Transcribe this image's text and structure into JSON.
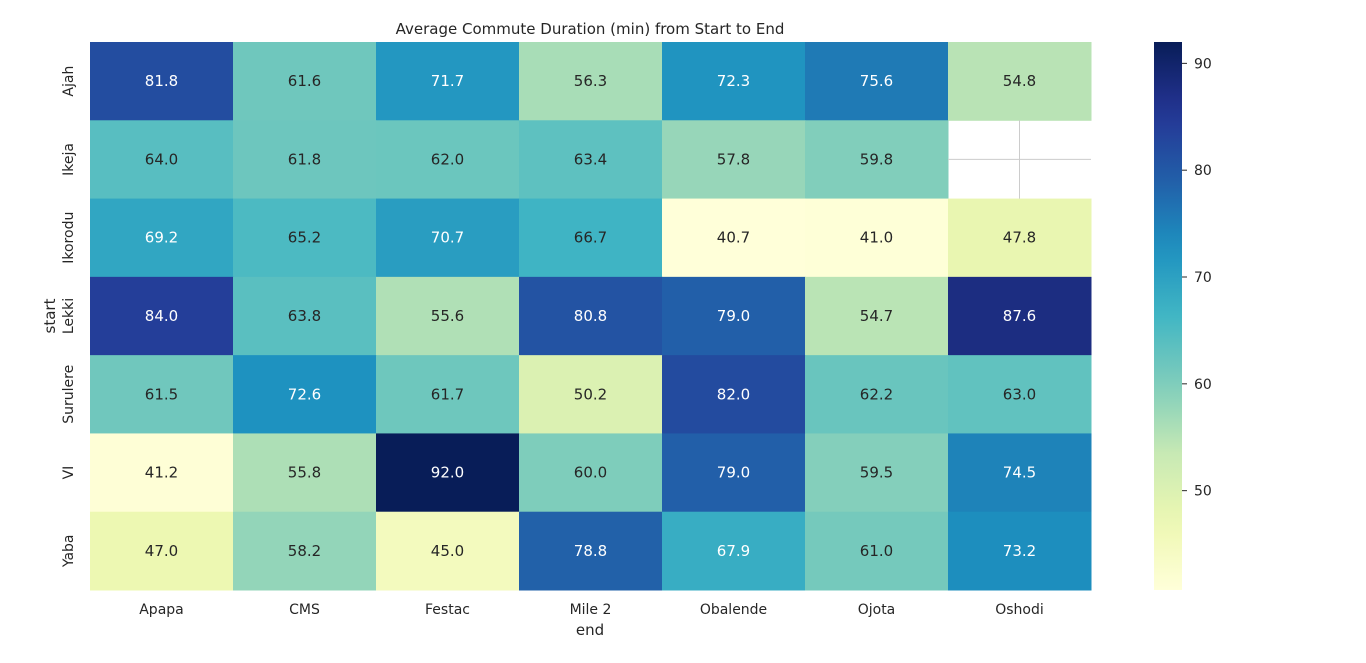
{
  "chart_data": {
    "type": "heatmap",
    "title": "Average Commute Duration (min) from Start to End",
    "xlabel": "end",
    "ylabel": "start",
    "x_categories": [
      "Apapa",
      "CMS",
      "Festac",
      "Mile 2",
      "Obalende",
      "Ojota",
      "Oshodi"
    ],
    "y_categories": [
      "Ajah",
      "Ikeja",
      "Ikorodu",
      "Lekki",
      "Surulere",
      "VI",
      "Yaba"
    ],
    "values": [
      [
        81.8,
        61.6,
        71.7,
        56.3,
        72.3,
        75.6,
        54.8
      ],
      [
        64.0,
        61.8,
        62.0,
        63.4,
        57.8,
        59.8,
        null
      ],
      [
        69.2,
        65.2,
        70.7,
        66.7,
        40.7,
        41.0,
        47.8
      ],
      [
        84.0,
        63.8,
        55.6,
        80.8,
        79.0,
        54.7,
        87.6
      ],
      [
        61.5,
        72.6,
        61.7,
        50.2,
        82.0,
        62.2,
        63.0
      ],
      [
        41.2,
        55.8,
        92.0,
        60.0,
        79.0,
        59.5,
        74.5
      ],
      [
        47.0,
        58.2,
        45.0,
        78.8,
        67.9,
        61.0,
        73.2
      ]
    ],
    "value_labels": [
      [
        "81.8",
        "61.6",
        "71.7",
        "56.3",
        "72.3",
        "75.6",
        "54.8"
      ],
      [
        "64.0",
        "61.8",
        "62.0",
        "63.4",
        "57.8",
        "59.8",
        ""
      ],
      [
        "69.2",
        "65.2",
        "70.7",
        "66.7",
        "40.7",
        "41.0",
        "47.8"
      ],
      [
        "84.0",
        "63.8",
        "55.6",
        "80.8",
        "79.0",
        "54.7",
        "87.6"
      ],
      [
        "61.5",
        "72.6",
        "61.7",
        "50.2",
        "82.0",
        "62.2",
        "63.0"
      ],
      [
        "41.2",
        "55.8",
        "92.0",
        "60.0",
        "79.0",
        "59.5",
        "74.5"
      ],
      [
        "47.0",
        "58.2",
        "45.0",
        "78.8",
        "67.9",
        "61.0",
        "73.2"
      ]
    ],
    "colormap": "YlGnBu",
    "colorbar": {
      "min": 40.7,
      "max": 92.0,
      "ticks": [
        50,
        60,
        70,
        80,
        90
      ],
      "tick_labels": [
        "50",
        "60",
        "70",
        "80",
        "90"
      ]
    },
    "missing_cells": [
      [
        1,
        6
      ]
    ],
    "grid": false
  }
}
